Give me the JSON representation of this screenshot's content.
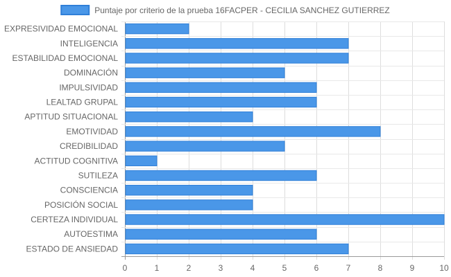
{
  "chart_data": {
    "type": "bar",
    "orientation": "horizontal",
    "categories": [
      "EXPRESIVIDAD EMOCIONAL",
      "INTELIGENCIA",
      "ESTABILIDAD EMOCIONAL",
      "DOMINACIÓN",
      "IMPULSIVIDAD",
      "LEALTAD GRUPAL",
      "APTITUD SITUACIONAL",
      "EMOTIVIDAD",
      "CREDIBILIDAD",
      "ACTITUD COGNITIVA",
      "SUTILEZA",
      "CONSCIENCIA",
      "POSICIÓN SOCIAL",
      "CERTEZA INDIVIDUAL",
      "AUTOESTIMA",
      "ESTADO DE ANSIEDAD"
    ],
    "series": [
      {
        "name": "Puntaje por criterio de la prueba 16FACPER - CECILIA SANCHEZ GUTIERREZ",
        "values": [
          2,
          7,
          7,
          5,
          6,
          6,
          4,
          8,
          5,
          1,
          6,
          4,
          4,
          10,
          6,
          7
        ],
        "color": "#4a97e8"
      }
    ],
    "xlim": [
      0,
      10
    ],
    "x_ticks": [
      "0",
      "1",
      "2",
      "3",
      "4",
      "5",
      "6",
      "7",
      "8",
      "9",
      "10"
    ],
    "grid": true,
    "legend_position": "top"
  }
}
